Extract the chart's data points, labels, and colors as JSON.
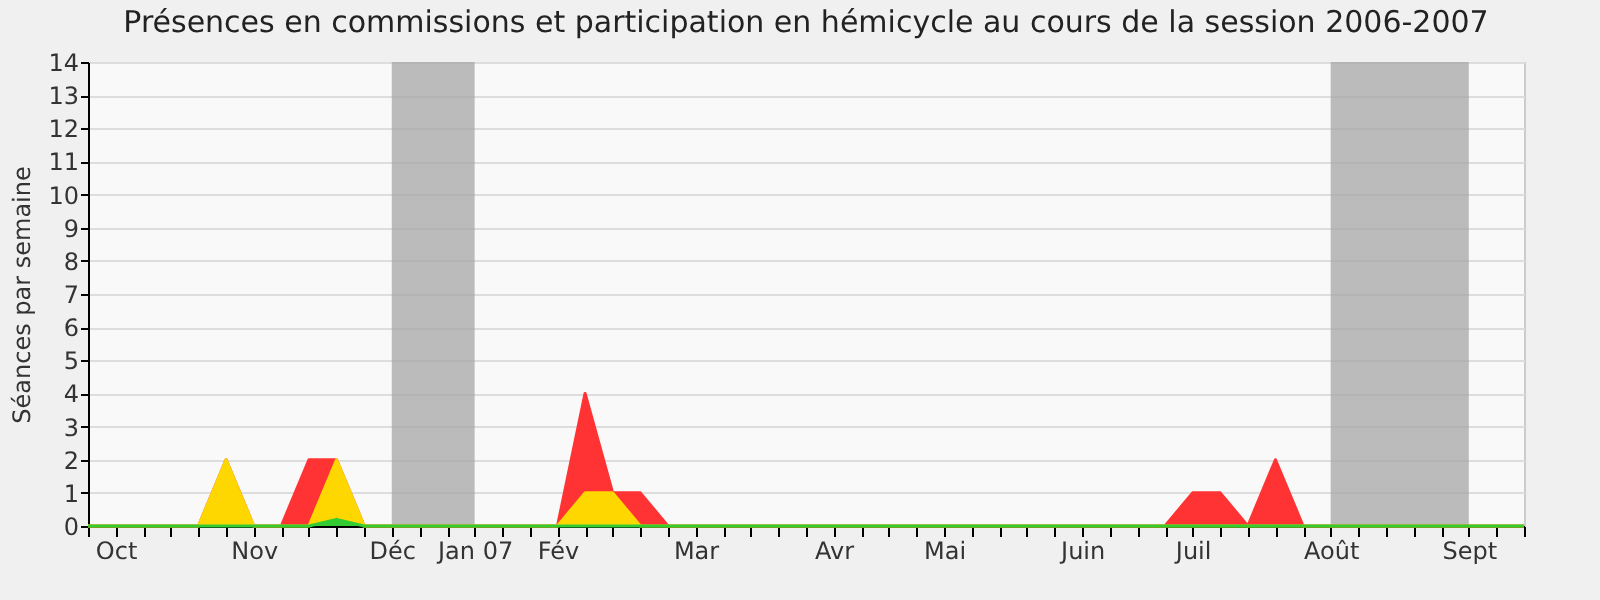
{
  "chart_data": {
    "type": "area",
    "title": "Présences en commissions et participation en hémicycle au cours de la session 2006-2007",
    "ylabel": "Séances par semaine",
    "categories": [
      null,
      "Oct",
      null,
      null,
      null,
      null,
      "Nov",
      null,
      null,
      null,
      null,
      "Déc",
      null,
      null,
      "Jan 07",
      null,
      null,
      "Fév",
      null,
      null,
      null,
      null,
      "Mar",
      null,
      null,
      null,
      null,
      "Avr",
      null,
      null,
      null,
      "Mai",
      null,
      null,
      null,
      null,
      "Juin",
      null,
      null,
      null,
      "Juil",
      null,
      null,
      null,
      null,
      "Août",
      null,
      null,
      null,
      null,
      "Sept",
      null,
      null
    ],
    "series": [
      {
        "color": "#ff3333",
        "values": [
          0,
          0,
          0,
          0,
          0,
          2,
          0,
          0,
          2,
          2,
          0,
          0,
          0,
          0,
          0,
          0,
          0,
          0,
          4,
          1,
          1,
          0,
          0,
          0,
          0,
          0,
          0,
          0,
          0,
          0,
          0,
          0,
          0,
          0,
          0,
          0,
          0,
          0,
          0,
          0,
          1,
          1,
          0,
          2,
          0,
          0,
          0,
          0,
          0,
          0,
          0,
          0,
          0
        ]
      },
      {
        "color": "#ffd700",
        "values": [
          0,
          0,
          0,
          0,
          0,
          2,
          0,
          0,
          0,
          2,
          0,
          0,
          0,
          0,
          0,
          0,
          0,
          0,
          1,
          1,
          0,
          0,
          0,
          0,
          0,
          0,
          0,
          0,
          0,
          0,
          0,
          0,
          0,
          0,
          0,
          0,
          0,
          0,
          0,
          0,
          0,
          0,
          0,
          0,
          0,
          0,
          0,
          0,
          0,
          0,
          0,
          0,
          0
        ]
      },
      {
        "color": "#33cc33",
        "values": [
          0,
          0,
          0,
          0,
          0,
          0,
          0,
          0,
          0,
          0.2,
          0,
          0,
          0,
          0,
          0,
          0,
          0,
          0,
          0,
          0,
          0,
          0,
          0,
          0,
          0,
          0,
          0,
          0,
          0,
          0,
          0,
          0,
          0,
          0,
          0,
          0,
          0,
          0,
          0,
          0,
          0,
          0,
          0,
          0,
          0,
          0,
          0,
          0,
          0,
          0,
          0,
          0,
          0
        ]
      }
    ],
    "ylim": [
      0,
      14
    ],
    "yticks": [
      0,
      1,
      2,
      3,
      4,
      5,
      6,
      7,
      8,
      9,
      10,
      11,
      12,
      13,
      14
    ],
    "grid": "y",
    "bands": [
      {
        "axis": "x",
        "from": "Déc",
        "to": "Jan 07",
        "color": "#a6a6a6"
      },
      {
        "axis": "x",
        "from": "Août",
        "to": "Sept",
        "color": "#a6a6a6"
      }
    ]
  }
}
